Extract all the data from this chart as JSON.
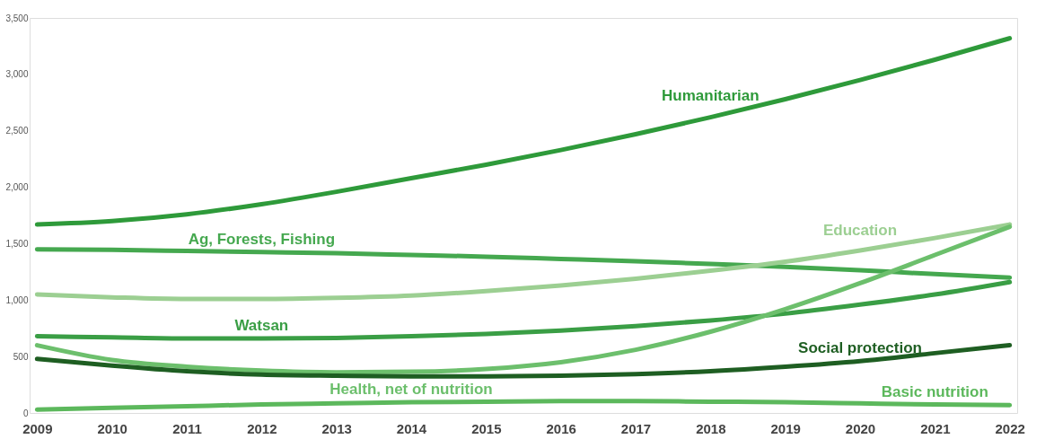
{
  "chart_data": {
    "type": "line",
    "categories": [
      "2009",
      "2010",
      "2011",
      "2012",
      "2013",
      "2014",
      "2015",
      "2016",
      "2017",
      "2018",
      "2019",
      "2020",
      "2021",
      "2022"
    ],
    "ylim": [
      0,
      3500
    ],
    "yticks": [
      0,
      500,
      {
        "value": 1000,
        "label": "1,000"
      },
      {
        "value": 1500,
        "label": "1,500"
      },
      {
        "value": 2000,
        "label": "2,000"
      },
      {
        "value": 2500,
        "label": "2,500"
      },
      {
        "value": 3000,
        "label": "3,000"
      },
      {
        "value": 3500,
        "label": "3,500"
      }
    ],
    "grid": false,
    "marker": "none",
    "line_style": "solid",
    "series": [
      {
        "name": "Humanitarian",
        "color": "#2e9a3a",
        "values": [
          1670,
          1700,
          1760,
          1850,
          1960,
          2080,
          2200,
          2330,
          2470,
          2620,
          2780,
          2950,
          3130,
          3320
        ]
      },
      {
        "name": "Ag, Forests, Fishing",
        "color": "#45a84f",
        "values": [
          1450,
          1445,
          1435,
          1425,
          1415,
          1400,
          1385,
          1365,
          1345,
          1320,
          1295,
          1265,
          1230,
          1200
        ]
      },
      {
        "name": "Education",
        "color": "#9ccf92",
        "values": [
          1050,
          1025,
          1010,
          1010,
          1020,
          1040,
          1080,
          1130,
          1190,
          1260,
          1340,
          1440,
          1550,
          1670
        ]
      },
      {
        "name": "Watsan",
        "color": "#3a9e45",
        "values": [
          680,
          670,
          660,
          660,
          665,
          680,
          700,
          730,
          770,
          820,
          880,
          960,
          1050,
          1160
        ]
      },
      {
        "name": "Health,  net of nutrition",
        "color": "#6cbf6c",
        "values": [
          600,
          470,
          410,
          375,
          360,
          365,
          390,
          450,
          560,
          720,
          920,
          1150,
          1400,
          1650
        ]
      },
      {
        "name": "Social  protection",
        "color": "#1e5e22",
        "values": [
          480,
          420,
          370,
          340,
          330,
          325,
          325,
          330,
          345,
          370,
          410,
          460,
          530,
          600
        ]
      },
      {
        "name": "Basic nutrition",
        "color": "#5cb85c",
        "values": [
          30,
          45,
          60,
          75,
          85,
          95,
          100,
          105,
          105,
          100,
          95,
          85,
          75,
          70
        ]
      }
    ]
  }
}
